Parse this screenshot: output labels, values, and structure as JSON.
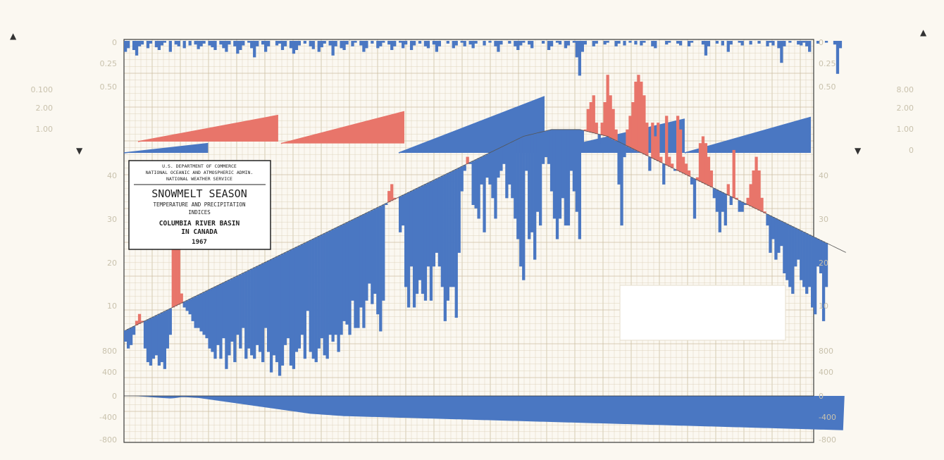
{
  "colors": {
    "above": "#e8756a",
    "below": "#4a77c2",
    "grid": "#ddd3bd",
    "grid_major": "#cdbfa2",
    "faded_text": "#c9c2ad",
    "ink": "#222222"
  },
  "title_box": {
    "agency_line1": "U.S. DEPARTMENT OF COMMERCE",
    "agency_line2": "NATIONAL OCEANIC AND ATMOSPHERIC ADMIN.",
    "agency_line3": "NATIONAL WEATHER SERVICE",
    "title": "SNOWMELT SEASON",
    "subtitle_line1": "TEMPERATURE AND PRECIPITATION",
    "subtitle_line2": "INDICES",
    "region_line1": "COLUMBIA RIVER BASIN",
    "region_line2": "IN CANADA",
    "year": "1967"
  },
  "axes": {
    "precip_left_ticks": [
      "0",
      "0.25",
      "0.50"
    ],
    "precip_right_ticks": [
      "0",
      "0.25",
      "0.50"
    ],
    "cum_left_ticks": [
      "0.100",
      "2.00",
      "1.00"
    ],
    "cum_right_ticks": [
      "8.00",
      "2.00",
      "1.00",
      "0"
    ],
    "temp_left_ticks": [
      "40",
      "30",
      "20",
      "10"
    ],
    "temp_right_ticks": [
      "40",
      "30",
      "20",
      "10"
    ],
    "accum_left_ticks": [
      "800",
      "400",
      "0",
      "-400",
      "-800"
    ],
    "accum_right_ticks": [
      "800",
      "400",
      "0",
      "-400",
      "-800"
    ]
  },
  "chart_data": [
    {
      "type": "bar",
      "panel": "daily precipitation index",
      "ylim": [
        0.6,
        0
      ],
      "values": [
        0.12,
        0.08,
        0.0,
        0.1,
        0.16,
        0.06,
        0.04,
        0.0,
        0.08,
        0.03,
        0.0,
        0.07,
        0.1,
        0.05,
        0.02,
        0.0,
        0.12,
        0.0,
        0.04,
        0.06,
        0.0,
        0.08,
        0.0,
        0.05,
        0.0,
        0.04,
        0.09,
        0.06,
        0.03,
        0.0,
        0.05,
        0.07,
        0.1,
        0.0,
        0.04,
        0.08,
        0.12,
        0.04,
        0.0,
        0.06,
        0.14,
        0.1,
        0.05,
        0.0,
        0.02,
        0.08,
        0.18,
        0.06,
        0.0,
        0.04,
        0.12,
        0.06,
        0.0,
        0.0,
        0.05,
        0.03,
        0.1,
        0.06,
        0.0,
        0.08,
        0.14,
        0.1,
        0.05,
        0.0,
        0.03,
        0.0,
        0.06,
        0.09,
        0.0,
        0.12,
        0.07,
        0.03,
        0.0,
        0.05,
        0.16,
        0.06,
        0.0,
        0.08,
        0.1,
        0.04,
        0.0,
        0.06,
        0.02,
        0.0,
        0.05,
        0.12,
        0.08,
        0.0,
        0.03,
        0.0,
        0.08,
        0.06,
        0.02,
        0.0,
        0.04,
        0.1,
        0.06,
        0.0,
        0.02,
        0.08,
        0.04,
        0.0,
        0.1,
        0.05,
        0.0,
        0.03,
        0.0,
        0.06,
        0.08,
        0.0,
        0.04,
        0.12,
        0.06,
        0.0,
        0.0,
        0.03,
        0.0,
        0.08,
        0.05,
        0.0,
        0.02,
        0.06,
        0.0,
        0.04,
        0.08,
        0.03,
        0.0,
        0.0,
        0.05,
        0.0,
        0.02,
        0.0,
        0.06,
        0.12,
        0.04,
        0.0,
        0.0,
        0.03,
        0.0,
        0.06,
        0.1,
        0.05,
        0.02,
        0.0,
        0.04,
        0.08,
        0.0,
        0.0,
        0.0,
        0.03,
        0.0,
        0.1,
        0.06,
        0.0,
        0.02,
        0.04,
        0.0,
        0.08,
        0.05,
        0.0,
        0.02,
        0.18,
        0.38,
        0.12,
        0.04,
        0.0,
        0.0,
        0.06,
        0.03,
        0.0,
        0.0,
        0.04,
        0.02,
        0.0,
        0.0,
        0.06,
        0.03,
        0.0,
        0.05,
        0.0,
        0.02,
        0.0,
        0.04,
        0.0,
        0.05,
        0.02,
        0.0,
        0.0,
        0.06,
        0.08,
        0.0,
        0.0,
        0.0,
        0.04,
        0.02,
        0.0,
        0.0,
        0.03,
        0.05,
        0.0,
        0.0,
        0.06,
        0.02,
        0.0,
        0.0,
        0.0,
        0.04,
        0.16,
        0.06,
        0.0,
        0.0,
        0.03,
        0.0,
        0.05,
        0.0,
        0.12,
        0.04,
        0.0,
        0.0,
        0.02,
        0.05,
        0.0,
        0.0,
        0.04,
        0.0,
        0.0,
        0.03,
        0.0,
        0.0,
        0.06,
        0.02,
        0.05,
        0.0,
        0.08,
        0.24,
        0.06,
        0.0,
        0.02,
        0.0,
        0.0,
        0.04,
        0.05,
        0.02,
        0.06,
        0.12,
        0.0,
        0.0,
        0.03,
        0.0,
        0.0,
        0.02,
        0.0,
        0.0,
        0.04,
        0.36,
        0.08,
        0.0
      ]
    },
    {
      "type": "area",
      "panel": "cumulative precipitation index",
      "segments": [
        {
          "color": "below",
          "from": [
            0,
            0
          ],
          "to": [
            30,
            0.5
          ]
        },
        {
          "color": "above",
          "from": [
            5,
            0.6
          ],
          "to": [
            55,
            2.0
          ]
        },
        {
          "color": "above",
          "from": [
            56,
            0.5
          ],
          "to": [
            100,
            2.2
          ]
        },
        {
          "color": "below",
          "from": [
            98,
            0.0
          ],
          "to": [
            150,
            3.0
          ]
        },
        {
          "color": "below",
          "from": [
            148,
            0.0
          ],
          "to": [
            200,
            1.8
          ]
        },
        {
          "color": "below",
          "from": [
            200,
            0.0
          ],
          "to": [
            245,
            1.9
          ]
        }
      ]
    },
    {
      "type": "bar",
      "panel": "temperature index",
      "ylim": [
        0,
        45
      ],
      "normal": [
        6.6,
        6.8,
        7.0,
        7.2,
        7.4,
        7.6,
        7.8,
        8.0,
        8.2,
        8.4,
        8.6,
        8.8,
        9.0,
        9.2,
        9.4,
        9.6,
        9.8,
        10.0,
        10.2,
        10.4,
        10.6,
        10.8,
        11.0,
        11.2,
        11.4,
        11.6,
        11.8,
        12.0,
        12.2,
        12.4,
        12.6,
        12.8,
        13.0,
        13.2,
        13.4,
        13.6,
        13.8,
        14.0,
        14.2,
        14.4,
        14.6,
        14.8,
        15.0,
        15.2,
        15.4,
        15.6,
        15.8,
        16.0,
        16.2,
        16.4,
        16.6,
        16.8,
        17.0,
        17.2,
        17.4,
        17.6,
        17.8,
        18.0,
        18.2,
        18.4,
        18.6,
        18.8,
        19.0,
        19.2,
        19.4,
        19.6,
        19.8,
        20.0,
        20.2,
        20.4,
        20.6,
        20.8,
        21.0,
        21.2,
        21.4,
        21.6,
        21.8,
        22.0,
        22.2,
        22.4,
        22.6,
        22.8,
        23.0,
        23.2,
        23.4,
        23.6,
        23.8,
        24.0,
        24.2,
        24.4,
        24.6,
        24.8,
        25.0,
        25.2,
        25.4,
        25.6,
        25.8,
        26.0,
        26.2,
        26.4,
        26.6,
        26.8,
        27.0,
        27.2,
        27.4,
        27.6,
        27.8,
        28.0,
        28.2,
        28.4,
        28.6,
        28.8,
        29.0,
        29.2,
        29.4,
        29.6,
        29.8,
        30.0,
        30.2,
        30.4,
        30.6,
        30.8,
        31.0,
        31.2,
        31.4,
        31.6,
        31.8,
        32.0,
        32.2,
        32.4,
        32.6,
        32.8,
        33.0,
        33.2,
        33.4,
        33.6,
        33.8,
        34.0,
        34.2,
        34.4,
        34.6,
        34.8,
        35.0,
        35.1,
        35.2,
        35.3,
        35.4,
        35.5,
        35.6,
        35.7,
        35.8,
        35.9,
        36.0,
        36.0,
        36.0,
        36.0,
        36.0,
        36.0,
        36.0,
        36.0,
        36.0,
        36.0,
        36.0,
        35.9,
        35.8,
        35.7,
        35.6,
        35.5,
        35.4,
        35.3,
        35.2,
        35.1,
        35.0,
        34.8,
        34.6,
        34.4,
        34.2,
        34.0,
        33.8,
        33.6,
        33.4,
        33.2,
        33.0,
        32.8,
        32.6,
        32.4,
        32.2,
        32.0,
        31.8,
        31.6,
        31.4,
        31.2,
        31.0,
        30.8,
        30.6,
        30.4,
        30.2,
        30.0,
        29.8,
        29.6,
        29.4,
        29.2,
        29.0,
        28.8,
        28.6,
        28.4,
        28.2,
        28.0,
        27.8,
        27.6,
        27.4,
        27.2,
        27.0,
        26.8,
        26.6,
        26.4,
        26.2,
        26.0,
        25.8,
        25.6,
        25.4,
        25.2,
        25.0,
        24.8,
        24.6,
        24.4,
        24.2,
        24.0,
        23.8,
        23.6,
        23.4,
        23.2,
        23.0,
        22.8,
        22.6,
        22.4,
        22.2,
        22.0,
        21.8,
        21.6,
        21.4,
        21.2,
        21.0,
        20.8,
        20.6,
        20.4,
        20.2,
        20.0,
        19.8,
        19.6,
        19.4,
        19.2,
        19.0,
        18.8,
        18.6,
        18.4,
        18.2,
        18.0
      ],
      "values": [
        5.0,
        4.0,
        4.5,
        6.0,
        8.0,
        9.0,
        8.0,
        4.0,
        2.0,
        1.5,
        2.5,
        3.0,
        1.5,
        2.0,
        1.0,
        4.0,
        6.0,
        22.0,
        26.0,
        24.0,
        12.0,
        10.0,
        9.5,
        9.0,
        8.0,
        7.0,
        7.0,
        6.5,
        6.0,
        5.5,
        4.0,
        3.5,
        2.5,
        4.5,
        2.5,
        5.5,
        1.0,
        3.0,
        5.0,
        2.0,
        6.0,
        4.0,
        7.0,
        2.5,
        4.0,
        3.0,
        2.5,
        4.5,
        3.5,
        2.0,
        7.0,
        3.5,
        0.5,
        3.0,
        2.0,
        0.0,
        1.5,
        4.5,
        5.5,
        1.5,
        1.0,
        3.5,
        4.0,
        6.0,
        2.5,
        9.5,
        3.5,
        2.5,
        2.0,
        4.0,
        5.5,
        3.0,
        2.5,
        6.0,
        5.0,
        6.0,
        3.5,
        6.0,
        8.0,
        7.5,
        6.0,
        11.0,
        7.0,
        7.0,
        10.0,
        7.0,
        11.0,
        13.5,
        10.5,
        12.0,
        9.0,
        6.5,
        11.0,
        25.0,
        27.0,
        28.0,
        26.0,
        26.0,
        21.0,
        22.0,
        13.0,
        10.0,
        16.0,
        10.0,
        12.0,
        14.0,
        12.0,
        11.0,
        16.0,
        11.0,
        16.0,
        18.0,
        16.0,
        13.0,
        8.0,
        11.0,
        13.0,
        13.0,
        8.5,
        18.0,
        27.0,
        30.0,
        32.0,
        31.0,
        25.0,
        24.5,
        23.0,
        28.0,
        21.0,
        29.0,
        28.0,
        26.0,
        23.0,
        29.0,
        30.0,
        31.0,
        26.0,
        28.0,
        26.0,
        23.0,
        20.0,
        16.0,
        14.0,
        30.0,
        20.0,
        21.0,
        17.0,
        24.0,
        22.0,
        31.0,
        32.0,
        31.0,
        27.0,
        23.0,
        20.0,
        23.0,
        26.0,
        22.0,
        22.0,
        30.0,
        27.0,
        24.0,
        20.0,
        33.0,
        36.0,
        39.0,
        40.0,
        41.0,
        37.0,
        34.0,
        37.0,
        40.0,
        44.0,
        41.0,
        39.0,
        36.0,
        28.0,
        22.0,
        32.0,
        36.0,
        38.0,
        40.0,
        43.0,
        44.0,
        43.0,
        41.0,
        37.0,
        30.0,
        37.0,
        35.0,
        37.0,
        32.0,
        28.0,
        38.0,
        32.0,
        31.0,
        30.0,
        38.0,
        36.0,
        32.0,
        31.0,
        30.0,
        28.0,
        23.0,
        29.0,
        34.0,
        35.0,
        34.0,
        32.0,
        30.0,
        26.0,
        24.0,
        21.0,
        24.0,
        22.0,
        28.0,
        25.0,
        33.0,
        26.0,
        24.0,
        24.0,
        25.0,
        26.0,
        28.0,
        30.0,
        32.0,
        30.0,
        26.0,
        24.0,
        22.0,
        18.0,
        20.0,
        17.0,
        18.0,
        19.0,
        15.0,
        14.0,
        13.0,
        12.0,
        16.0,
        17.0,
        14.0,
        13.0,
        12.0,
        13.0,
        10.0,
        9.0,
        16.0,
        15.0,
        8.0,
        13.0
      ]
    },
    {
      "type": "area",
      "panel": "accumulated departure",
      "ylim": [
        -800,
        800
      ],
      "values": [
        0,
        0,
        0,
        0,
        -5,
        -10,
        -15,
        -20,
        -25,
        -30,
        -35,
        -40,
        -45,
        -50,
        -55,
        -60,
        -64,
        -60,
        -50,
        -40,
        -30,
        -30,
        -34,
        -38,
        -42,
        -46,
        -50,
        -60,
        -70,
        -80,
        -90,
        -100,
        -110,
        -120,
        -130,
        -140,
        -150,
        -160,
        -170,
        -180,
        -190,
        -200,
        -210,
        -220,
        -230,
        -240,
        -250,
        -260,
        -270,
        -280,
        -290,
        -300,
        -310,
        -320,
        -330,
        -340,
        -350,
        -360,
        -370,
        -380,
        -390,
        -400,
        -410,
        -420,
        -430,
        -440,
        -450,
        -455,
        -460,
        -465,
        -470,
        -475,
        -480,
        -485,
        -490,
        -495,
        -500,
        -505,
        -510,
        -512,
        -514,
        -516,
        -518,
        -520,
        -522,
        -524,
        -526,
        -528,
        -530,
        -532,
        -534,
        -536,
        -538,
        -540,
        -542,
        -544,
        -546,
        -548,
        -550,
        -552,
        -554,
        -556,
        -558,
        -560,
        -562,
        -564,
        -566,
        -568,
        -570,
        -572,
        -574,
        -576,
        -578,
        -580,
        -582,
        -584,
        -586,
        -588,
        -590,
        -592,
        -594,
        -596,
        -598,
        -600,
        -602,
        -604,
        -606,
        -608,
        -610,
        -612,
        -614,
        -616,
        -618,
        -620,
        -622,
        -624,
        -626,
        -628,
        -630,
        -632,
        -634,
        -636,
        -638,
        -640,
        -642,
        -644,
        -646,
        -648,
        -650,
        -652,
        -654,
        -656,
        -658,
        -660,
        -662,
        -664,
        -666,
        -668,
        -670,
        -672,
        -674,
        -676,
        -678,
        -680,
        -682,
        -684,
        -686,
        -688,
        -690,
        -692,
        -694,
        -696,
        -698,
        -700,
        -702,
        -704,
        -706,
        -708,
        -710,
        -712,
        -714,
        -716,
        -718,
        -720,
        -722,
        -724,
        -726,
        -728,
        -730,
        -732,
        -734,
        -736,
        -738,
        -740,
        -742,
        -744,
        -746,
        -748,
        -750,
        -752,
        -754,
        -756,
        -758,
        -760,
        -762,
        -764,
        -766,
        -768,
        -770,
        -772,
        -774,
        -776,
        -778,
        -780,
        -782,
        -784,
        -786,
        -788,
        -790,
        -792,
        -794,
        -796,
        -798,
        -800,
        -802,
        -804,
        -806,
        -808,
        -810,
        -812,
        -814,
        -816,
        -818,
        -820,
        -822,
        -824,
        -826,
        -828,
        -830,
        -832,
        -834,
        -836,
        -838,
        -840,
        -842,
        -844,
        -846,
        -848,
        -850,
        -852,
        -854,
        -856,
        -858,
        -860,
        -862,
        -864,
        -866
      ]
    }
  ]
}
